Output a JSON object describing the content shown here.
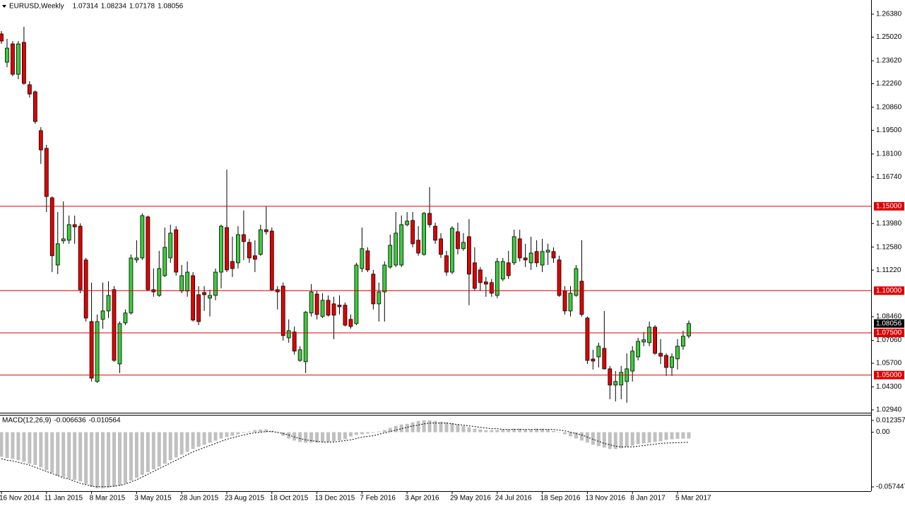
{
  "chart_data": [
    {
      "type": "candlestick",
      "title": "EURUSD,Weekly",
      "categories": [
        "16 Nov 2014",
        null,
        null,
        null,
        null,
        null,
        null,
        null,
        "11 Jan 2015",
        null,
        null,
        null,
        null,
        null,
        null,
        null,
        "8 Mar 2015",
        null,
        null,
        null,
        null,
        null,
        null,
        null,
        "3 May 2015",
        null,
        null,
        null,
        null,
        null,
        null,
        null,
        "28 Jun 2015",
        null,
        null,
        null,
        null,
        null,
        null,
        null,
        "23 Aug 2015",
        null,
        null,
        null,
        null,
        null,
        null,
        null,
        "18 Oct 2015",
        null,
        null,
        null,
        null,
        null,
        null,
        null,
        "13 Dec 2015",
        null,
        null,
        null,
        null,
        null,
        null,
        null,
        "7 Feb 2016",
        null,
        null,
        null,
        null,
        null,
        null,
        null,
        "3 Apr 2016",
        null,
        null,
        null,
        null,
        null,
        null,
        null,
        "29 May 2016",
        null,
        null,
        null,
        null,
        null,
        null,
        null,
        "24 Jul 2016",
        null,
        null,
        null,
        null,
        null,
        null,
        null,
        "18 Sep 2016",
        null,
        null,
        null,
        null,
        null,
        null,
        null,
        "13 Nov 2016",
        null,
        null,
        null,
        null,
        null,
        null,
        null,
        "8 Jan 2017",
        null,
        null,
        null,
        null,
        null,
        null,
        null,
        "5 Mar 2017",
        null,
        null
      ],
      "open": [
        1.2521,
        1.2354,
        1.2462,
        1.2282,
        1.2471,
        1.222,
        1.2178,
        1.1948,
        1.1843,
        1.155,
        1.1152,
        1.1295,
        1.1299,
        1.1391,
        1.1382,
        1.1182,
        1.0817,
        1.0462,
        1.083,
        1.088,
        1.1006,
        1.0566,
        1.0809,
        1.0868,
        1.1182,
        1.1194,
        1.1437,
        1.1006,
        1.0972,
        1.1089,
        1.1194,
        1.1361,
        1.0998,
        1.0998,
        1.1089,
        1.0976,
        1.0989,
        1.0956,
        1.0972,
        1.111,
        1.1374,
        1.1173,
        1.1165,
        1.1332,
        1.1286,
        1.1207,
        1.1215,
        1.1361,
        1.1353,
        1.1006,
        1.1027,
        1.0721,
        1.0755,
        1.0587,
        1.0579,
        1.0868,
        1.098,
        1.0847,
        1.0943,
        1.0922,
        1.0914,
        1.0914,
        1.083,
        1.0805,
        1.1131,
        1.1236,
        1.1098,
        1.0922,
        1.0993,
        1.114,
        1.1152,
        1.1152,
        1.1391,
        1.1416,
        1.1299,
        1.1215,
        1.1458,
        1.1382,
        1.1307,
        1.1207,
        1.111,
        1.1349,
        1.1249,
        1.132,
        1.1165,
        1.1123,
        1.1052,
        1.1048,
        1.0972,
        1.1069,
        1.1165,
        1.1165,
        1.1307,
        1.1194,
        1.1165,
        1.1232,
        1.1152,
        1.1228,
        1.1232,
        1.1182,
        1.0998,
        1.088,
        1.0972,
        1.1056,
        1.0838,
        1.0595,
        1.0608,
        1.0658,
        1.0537,
        1.0441,
        1.0441,
        1.0462,
        1.0524,
        1.0608,
        1.0696,
        1.0692,
        1.0784,
        1.0629,
        1.0616,
        1.0545,
        1.0596,
        1.0671,
        1.07314
      ],
      "high": [
        1.2538,
        1.2492,
        1.2479,
        1.2479,
        1.2563,
        1.2241,
        1.2186,
        1.1969,
        1.1864,
        1.1558,
        1.1466,
        1.1529,
        1.1445,
        1.1445,
        1.1399,
        1.1194,
        1.1048,
        1.0859,
        1.1048,
        1.1056,
        1.1027,
        1.0817,
        1.0889,
        1.1215,
        1.1299,
        1.1458,
        1.1445,
        1.1131,
        1.1236,
        1.1374,
        1.1391,
        1.1382,
        1.1152,
        1.1173,
        1.111,
        1.1027,
        1.1027,
        1.1006,
        1.1131,
        1.1391,
        1.1717,
        1.132,
        1.1382,
        1.1475,
        1.1307,
        1.1299,
        1.1391,
        1.15,
        1.1374,
        1.1027,
        1.1048,
        1.083,
        1.0788,
        1.0671,
        1.088,
        1.1039,
        1.0998,
        1.0985,
        1.0972,
        1.0964,
        1.0972,
        1.093,
        1.0859,
        1.1165,
        1.1374,
        1.1257,
        1.1123,
        1.1048,
        1.1173,
        1.1332,
        1.1466,
        1.1445,
        1.1466,
        1.1466,
        1.1382,
        1.1466,
        1.1613,
        1.1403,
        1.1341,
        1.1236,
        1.1382,
        1.1403,
        1.1341,
        1.1424,
        1.1257,
        1.114,
        1.1081,
        1.1069,
        1.1194,
        1.1194,
        1.1236,
        1.1361,
        1.1361,
        1.1278,
        1.132,
        1.1299,
        1.1307,
        1.1278,
        1.1257,
        1.1207,
        1.1027,
        1.1027,
        1.1152,
        1.1299,
        1.0847,
        1.065,
        1.0692,
        1.088,
        1.0554,
        1.0524,
        1.0554,
        1.0629,
        1.0671,
        1.0721,
        1.0755,
        1.0817,
        1.0796,
        1.0713,
        1.0629,
        1.0629,
        1.0713,
        1.0763,
        1.08234
      ],
      "low": [
        1.2462,
        1.2324,
        1.227,
        1.2253,
        1.222,
        1.2144,
        1.1989,
        1.1751,
        1.1466,
        1.111,
        1.1098,
        1.1278,
        1.1278,
        1.1278,
        1.0985,
        1.0817,
        1.0462,
        1.0453,
        1.0775,
        1.0838,
        1.0579,
        1.0512,
        1.0796,
        1.0859,
        1.1165,
        1.1182,
        1.0998,
        1.0964,
        1.0964,
        1.1081,
        1.1165,
        1.1089,
        1.0985,
        1.0964,
        1.0817,
        1.0796,
        1.088,
        1.0847,
        1.0943,
        1.1014,
        1.111,
        1.1081,
        1.1131,
        1.1182,
        1.1165,
        1.111,
        1.1207,
        1.1332,
        1.0998,
        1.0889,
        1.0704,
        1.0692,
        1.0621,
        1.0579,
        1.0512,
        1.0847,
        1.083,
        1.0838,
        1.0847,
        1.0713,
        1.0859,
        1.0788,
        1.0775,
        1.0796,
        1.111,
        1.111,
        1.0889,
        1.0817,
        1.0817,
        1.1131,
        1.114,
        1.114,
        1.1382,
        1.1257,
        1.1207,
        1.1207,
        1.1374,
        1.1278,
        1.1194,
        1.1089,
        1.1098,
        1.1215,
        1.1236,
        1.0914,
        1.0998,
        1.0998,
        1.0964,
        1.0964,
        1.0956,
        1.1056,
        1.1069,
        1.1152,
        1.1173,
        1.114,
        1.1123,
        1.114,
        1.111,
        1.1152,
        1.1165,
        1.0964,
        1.0859,
        1.0847,
        1.0964,
        1.0847,
        1.0566,
        1.0533,
        1.0545,
        1.0533,
        1.0357,
        1.0344,
        1.0357,
        1.0336,
        1.0462,
        1.0587,
        1.0671,
        1.0671,
        1.0621,
        1.0566,
        1.0495,
        1.0495,
        1.0533,
        1.065,
        1.07178
      ],
      "close": [
        1.2479,
        1.2437,
        1.2282,
        1.2462,
        1.2228,
        1.2165,
        1.2002,
        1.1834,
        1.1558,
        1.1207,
        1.1278,
        1.1307,
        1.1391,
        1.1378,
        1.1006,
        1.0838,
        1.0482,
        1.0817,
        1.088,
        1.0972,
        1.0587,
        1.0805,
        1.0868,
        1.1194,
        1.1194,
        1.1445,
        1.1006,
        1.0993,
        1.1131,
        1.1257,
        1.1341,
        1.111,
        1.1089,
        1.111,
        1.0826,
        1.0817,
        1.0976,
        1.0972,
        1.111,
        1.1382,
        1.1123,
        1.1131,
        1.1332,
        1.1291,
        1.1194,
        1.1186,
        1.1361,
        1.1349,
        1.1006,
        1.0993,
        1.0734,
        1.0763,
        1.0642,
        1.065,
        1.0872,
        1.0993,
        1.0859,
        1.0943,
        1.0855,
        1.0855,
        1.0905,
        1.0796,
        1.0788,
        1.1152,
        1.1249,
        1.1123,
        1.0922,
        1.0993,
        1.1152,
        1.1269,
        1.1341,
        1.1391,
        1.1412,
        1.1278,
        1.1223,
        1.1458,
        1.1391,
        1.1299,
        1.1215,
        1.111,
        1.137,
        1.1249,
        1.1286,
        1.1098,
        1.1014,
        1.1048,
        1.1039,
        1.0985,
        1.1173,
        1.1173,
        1.1089,
        1.132,
        1.1194,
        1.1182,
        1.1223,
        1.1165,
        1.1232,
        1.124,
        1.1194,
        1.0972,
        1.088,
        1.0985,
        1.1131,
        1.0859,
        1.0587,
        1.0583,
        1.0671,
        1.0537,
        1.0441,
        1.0462,
        1.0516,
        1.0537,
        1.0642,
        1.07,
        1.0709,
        1.0784,
        1.0629,
        1.0612,
        1.0545,
        1.0608,
        1.0671,
        1.073,
        1.08056
      ],
      "up_color": "#3ccc3c",
      "down_color": "#e00000",
      "ylim": [
        1.0277,
        1.2722
      ],
      "yticks": [
        {
          "value": 1.2638,
          "label": "1.26380"
        },
        {
          "value": 1.2502,
          "label": "1.25020"
        },
        {
          "value": 1.2362,
          "label": "1.23620"
        },
        {
          "value": 1.2226,
          "label": "1.22260"
        },
        {
          "value": 1.2086,
          "label": "1.20860"
        },
        {
          "value": 1.195,
          "label": "1.19500"
        },
        {
          "value": 1.181,
          "label": "1.18100"
        },
        {
          "value": 1.1674,
          "label": "1.16740"
        },
        {
          "value": 1.1398,
          "label": "1.13980"
        },
        {
          "value": 1.1258,
          "label": "1.12580"
        },
        {
          "value": 1.1122,
          "label": "1.11220"
        },
        {
          "value": 1.0846,
          "label": "1.08460"
        },
        {
          "value": 1.0706,
          "label": "1.07060"
        },
        {
          "value": 1.057,
          "label": "1.05700"
        },
        {
          "value": 1.043,
          "label": "1.04300"
        },
        {
          "value": 1.0294,
          "label": "1.02940"
        }
      ],
      "levels": [
        {
          "value": 1.15,
          "label": "1.15000"
        },
        {
          "value": 1.1,
          "label": "1.10000"
        },
        {
          "value": 1.075,
          "label": "1.07500"
        },
        {
          "value": 1.05,
          "label": "1.05000"
        }
      ],
      "level_color": "#dd0000"
    },
    {
      "type": "macd",
      "title": "MACD(12,26,9)",
      "values": [
        -0.0257,
        -0.0272,
        -0.0279,
        -0.0294,
        -0.0309,
        -0.0331,
        -0.0345,
        -0.0368,
        -0.0397,
        -0.0426,
        -0.0456,
        -0.047,
        -0.0485,
        -0.05,
        -0.0515,
        -0.0544,
        -0.0573,
        -0.0588,
        -0.0588,
        -0.0581,
        -0.0573,
        -0.0559,
        -0.0537,
        -0.0507,
        -0.0478,
        -0.0448,
        -0.0419,
        -0.039,
        -0.036,
        -0.0331,
        -0.0294,
        -0.0265,
        -0.0235,
        -0.0206,
        -0.0176,
        -0.0154,
        -0.0132,
        -0.011,
        -0.0088,
        -0.0066,
        -0.0051,
        -0.0037,
        -0.0022,
        -0.0007,
        0.0007,
        0.0022,
        0.0029,
        0.0029,
        0.0015,
        -0.0007,
        -0.0037,
        -0.0066,
        -0.0088,
        -0.0103,
        -0.011,
        -0.011,
        -0.011,
        -0.0103,
        -0.0103,
        -0.0096,
        -0.0088,
        -0.0074,
        -0.0044,
        -0.0029,
        -0.0022,
        -0.0015,
        -0.0007,
        0.0007,
        0.0022,
        0.0044,
        0.0066,
        0.0081,
        0.0088,
        0.0103,
        0.0118,
        0.0125,
        0.0125,
        0.0118,
        0.011,
        0.0103,
        0.0096,
        0.0081,
        0.0066,
        0.0051,
        0.0037,
        0.0029,
        0.0022,
        0.0022,
        0.0022,
        0.0029,
        0.0029,
        0.0037,
        0.0037,
        0.0029,
        0.0029,
        0.0037,
        0.0037,
        0.0029,
        0.0015,
        0,
        -0.0022,
        -0.0044,
        -0.0066,
        -0.0088,
        -0.011,
        -0.0132,
        -0.0147,
        -0.0162,
        -0.0176,
        -0.0176,
        -0.0169,
        -0.0154,
        -0.014,
        -0.0125,
        -0.0118,
        -0.011,
        -0.0103,
        -0.0096,
        -0.0081,
        -0.0074,
        -0.007,
        -0.0068,
        -0.006636
      ],
      "signal": [
        -0.0279,
        -0.0294,
        -0.0301,
        -0.0316,
        -0.0331,
        -0.0345,
        -0.0368,
        -0.039,
        -0.0412,
        -0.0434,
        -0.0456,
        -0.0478,
        -0.0492,
        -0.0515,
        -0.0537,
        -0.0551,
        -0.0566,
        -0.0573,
        -0.0573,
        -0.0573,
        -0.0566,
        -0.0559,
        -0.0544,
        -0.0522,
        -0.05,
        -0.047,
        -0.0441,
        -0.0412,
        -0.0382,
        -0.0353,
        -0.0323,
        -0.0294,
        -0.0265,
        -0.0235,
        -0.0206,
        -0.0184,
        -0.0162,
        -0.014,
        -0.0118,
        -0.0096,
        -0.0074,
        -0.0059,
        -0.0044,
        -0.0029,
        -0.0015,
        -0.0007,
        0,
        0.0007,
        0.0007,
        0,
        -0.0015,
        -0.0029,
        -0.0051,
        -0.0066,
        -0.0081,
        -0.0088,
        -0.0096,
        -0.0103,
        -0.0103,
        -0.0103,
        -0.0096,
        -0.0088,
        -0.0081,
        -0.0066,
        -0.0051,
        -0.0044,
        -0.0037,
        -0.0022,
        -0.0007,
        0.0007,
        0.0022,
        0.0037,
        0.0051,
        0.0066,
        0.0074,
        0.0088,
        0.0096,
        0.0096,
        0.0096,
        0.0096,
        0.0088,
        0.0081,
        0.0074,
        0.0066,
        0.0059,
        0.0051,
        0.0044,
        0.0037,
        0.0037,
        0.0029,
        0.0029,
        0.0029,
        0.0029,
        0.0029,
        0.0029,
        0.0029,
        0.0029,
        0.0029,
        0.0029,
        0.0022,
        0.0015,
        0,
        -0.0015,
        -0.0029,
        -0.0051,
        -0.0074,
        -0.0096,
        -0.0118,
        -0.0132,
        -0.0147,
        -0.0154,
        -0.0154,
        -0.0154,
        -0.0147,
        -0.014,
        -0.0132,
        -0.0125,
        -0.0118,
        -0.0114,
        -0.0112,
        -0.011,
        -0.0108,
        -0.010564
      ],
      "color": "#c0c0c0",
      "signal_color": "#000000",
      "ylim": [
        -0.0619,
        0.0175
      ],
      "yticks": [
        0.012357,
        {
          "value": 0,
          "label": "0.00"
        },
        -0.057447
      ]
    }
  ]
}
